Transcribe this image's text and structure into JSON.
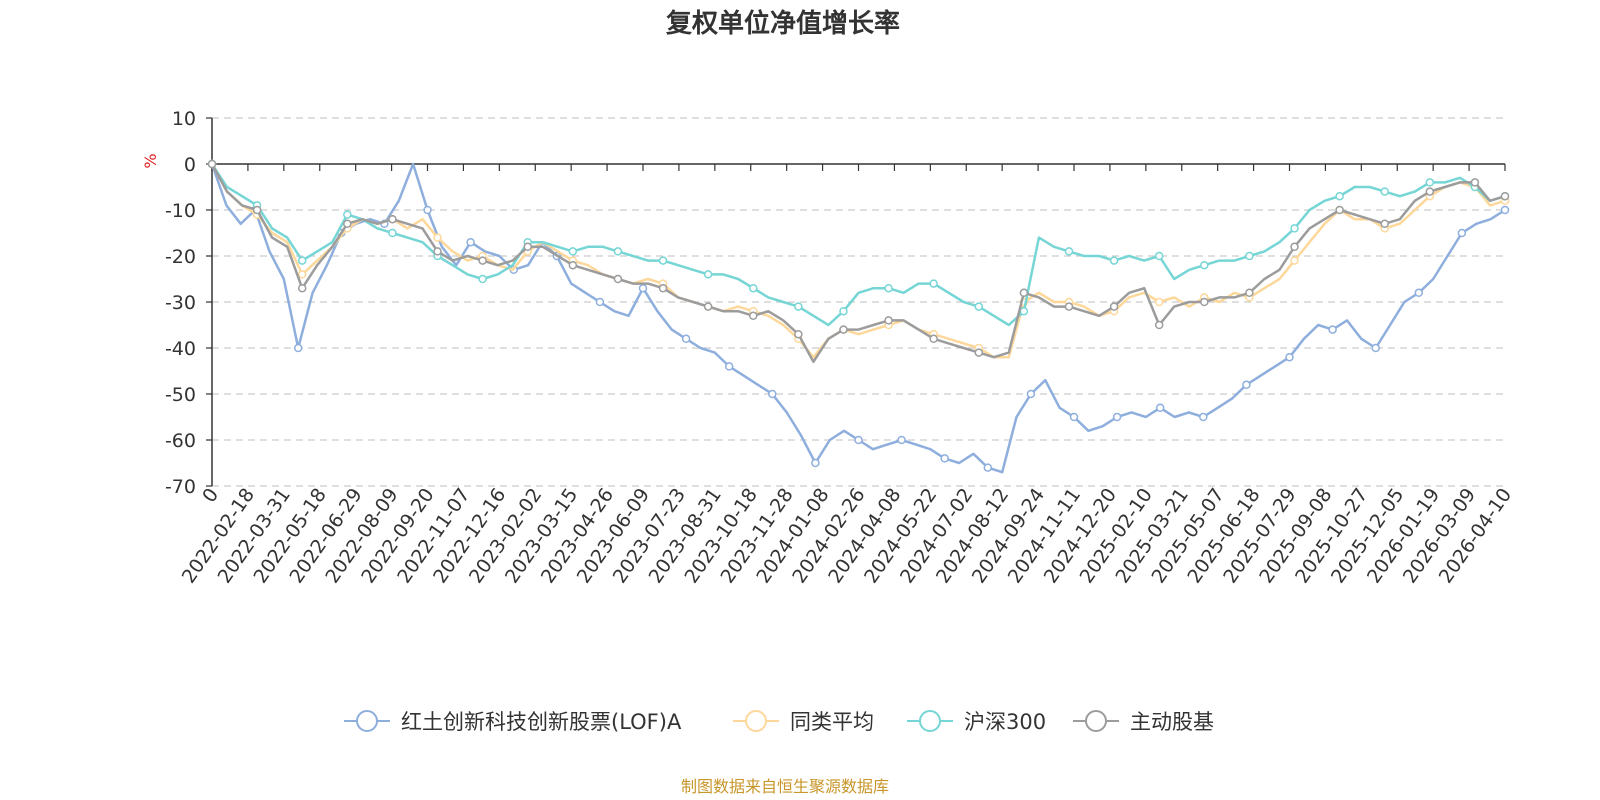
{
  "chart_data": {
    "type": "line",
    "title": "复权单位净值增长率",
    "ylabel": "%",
    "ylim": [
      -70,
      10
    ],
    "yticks": [
      "10",
      "0",
      "-10",
      "-20",
      "-30",
      "-40",
      "-50",
      "-60",
      "-70"
    ],
    "grid": true,
    "legend_position": "bottom",
    "x_labels": [
      "0",
      "2022-02-18",
      "2022-03-31",
      "2022-05-18",
      "2022-06-29",
      "2022-08-09",
      "2022-09-20",
      "2022-11-07",
      "2022-12-16",
      "2023-02-02",
      "2023-03-15",
      "2023-04-26",
      "2023-06-09",
      "2023-07-23",
      "2023-08-31",
      "2023-10-18",
      "2023-11-28",
      "2024-01-08",
      "2024-02-26",
      "2024-04-08",
      "2024-05-22",
      "2024-07-02",
      "2024-08-12",
      "2024-09-24",
      "2024-11-11",
      "2024-12-20",
      "2025-02-10",
      "2025-03-21",
      "2025-05-07",
      "2025-06-18",
      "2025-07-29",
      "2025-09-08",
      "2025-10-27",
      "2025-12-05",
      "2026-01-19",
      "2026-03-09",
      "2026-04-10"
    ],
    "series": [
      {
        "name": "红土创新科技创新股票(LOF)A",
        "color": "#8eaedd",
        "values": [
          0,
          -9,
          -13,
          -10,
          -19,
          -25,
          -40,
          -28,
          -22,
          -15,
          -13,
          -12,
          -13,
          -8,
          0,
          -10,
          -18,
          -22,
          -17,
          -19,
          -20,
          -23,
          -22,
          -17,
          -20,
          -26,
          -28,
          -30,
          -32,
          -33,
          -27,
          -32,
          -36,
          -38,
          -40,
          -41,
          -44,
          -46,
          -48,
          -50,
          -54,
          -59,
          -65,
          -60,
          -58,
          -60,
          -62,
          -61,
          -60,
          -61,
          -62,
          -64,
          -65,
          -63,
          -66,
          -67,
          -55,
          -50,
          -47,
          -53,
          -55,
          -58,
          -57,
          -55,
          -54,
          -55,
          -53,
          -55,
          -54,
          -55,
          -53,
          -51,
          -48,
          -46,
          -44,
          -42,
          -38,
          -35,
          -36,
          -34,
          -38,
          -40,
          -35,
          -30,
          -28,
          -25,
          -20,
          -15,
          -13,
          -12,
          -10
        ]
      },
      {
        "name": "同类平均",
        "color": "#fdd89a",
        "values": [
          0,
          -6,
          -9,
          -11,
          -15,
          -17,
          -24,
          -21,
          -18,
          -14,
          -12,
          -13,
          -12,
          -14,
          -12,
          -16,
          -19,
          -21,
          -20,
          -22,
          -23,
          -19,
          -17,
          -19,
          -21,
          -22,
          -24,
          -25,
          -26,
          -25,
          -26,
          -29,
          -30,
          -31,
          -32,
          -31,
          -32,
          -33,
          -35,
          -38,
          -42,
          -38,
          -36,
          -37,
          -36,
          -35,
          -34,
          -36,
          -37,
          -38,
          -39,
          -40,
          -42,
          -42,
          -30,
          -28,
          -30,
          -30,
          -31,
          -33,
          -32,
          -29,
          -28,
          -30,
          -29,
          -31,
          -29,
          -30,
          -28,
          -29,
          -27,
          -25,
          -21,
          -17,
          -13,
          -10,
          -12,
          -12,
          -14,
          -13,
          -10,
          -7,
          -5,
          -4,
          -5,
          -9,
          -8
        ]
      },
      {
        "name": "沪深300",
        "color": "#76d5d5",
        "values": [
          0,
          -5,
          -7,
          -9,
          -14,
          -16,
          -21,
          -19,
          -17,
          -11,
          -12,
          -14,
          -15,
          -16,
          -17,
          -20,
          -22,
          -24,
          -25,
          -24,
          -22,
          -17,
          -17,
          -18,
          -19,
          -18,
          -18,
          -19,
          -20,
          -21,
          -21,
          -22,
          -23,
          -24,
          -24,
          -25,
          -27,
          -29,
          -30,
          -31,
          -33,
          -35,
          -32,
          -28,
          -27,
          -27,
          -28,
          -26,
          -26,
          -28,
          -30,
          -31,
          -33,
          -35,
          -32,
          -16,
          -18,
          -19,
          -20,
          -20,
          -21,
          -20,
          -21,
          -20,
          -25,
          -23,
          -22,
          -21,
          -21,
          -20,
          -19,
          -17,
          -14,
          -10,
          -8,
          -7,
          -5,
          -5,
          -6,
          -7,
          -6,
          -4,
          -4,
          -3,
          -5,
          -8,
          -7
        ]
      },
      {
        "name": "主动股基",
        "color": "#9c9c9c",
        "values": [
          0,
          -6,
          -9,
          -10,
          -16,
          -18,
          -27,
          -22,
          -18,
          -13,
          -12,
          -13,
          -12,
          -13,
          -14,
          -19,
          -21,
          -20,
          -21,
          -22,
          -21,
          -18,
          -18,
          -20,
          -22,
          -23,
          -24,
          -25,
          -26,
          -26,
          -27,
          -29,
          -30,
          -31,
          -32,
          -32,
          -33,
          -32,
          -34,
          -37,
          -43,
          -38,
          -36,
          -36,
          -35,
          -34,
          -34,
          -36,
          -38,
          -39,
          -40,
          -41,
          -42,
          -41,
          -28,
          -29,
          -31,
          -31,
          -32,
          -33,
          -31,
          -28,
          -27,
          -35,
          -31,
          -30,
          -30,
          -29,
          -29,
          -28,
          -25,
          -23,
          -18,
          -14,
          -12,
          -10,
          -11,
          -12,
          -13,
          -12,
          -8,
          -6,
          -5,
          -4,
          -4,
          -8,
          -7
        ]
      }
    ]
  },
  "footer": {
    "source": "制图数据来自恒生聚源数据库"
  }
}
